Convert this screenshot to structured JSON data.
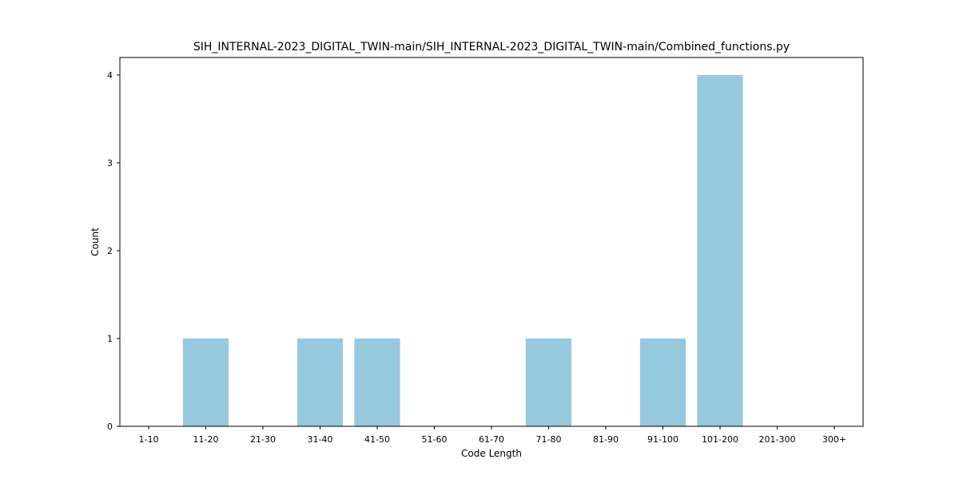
{
  "chart_data": {
    "type": "bar",
    "title": "SIH_INTERNAL-2023_DIGITAL_TWIN-main/SIH_INTERNAL-2023_DIGITAL_TWIN-main/Combined_functions.py",
    "xlabel": "Code Length",
    "ylabel": "Count",
    "categories": [
      "1-10",
      "11-20",
      "21-30",
      "31-40",
      "41-50",
      "51-60",
      "61-70",
      "71-80",
      "81-90",
      "91-100",
      "101-200",
      "201-300",
      "300+"
    ],
    "values": [
      0,
      1,
      0,
      1,
      1,
      0,
      0,
      1,
      0,
      1,
      4,
      0,
      0
    ],
    "yticks": [
      0,
      1,
      2,
      3,
      4
    ],
    "ylim": [
      0,
      4.2
    ],
    "grid": false,
    "bar_color": "#96c9dd"
  }
}
